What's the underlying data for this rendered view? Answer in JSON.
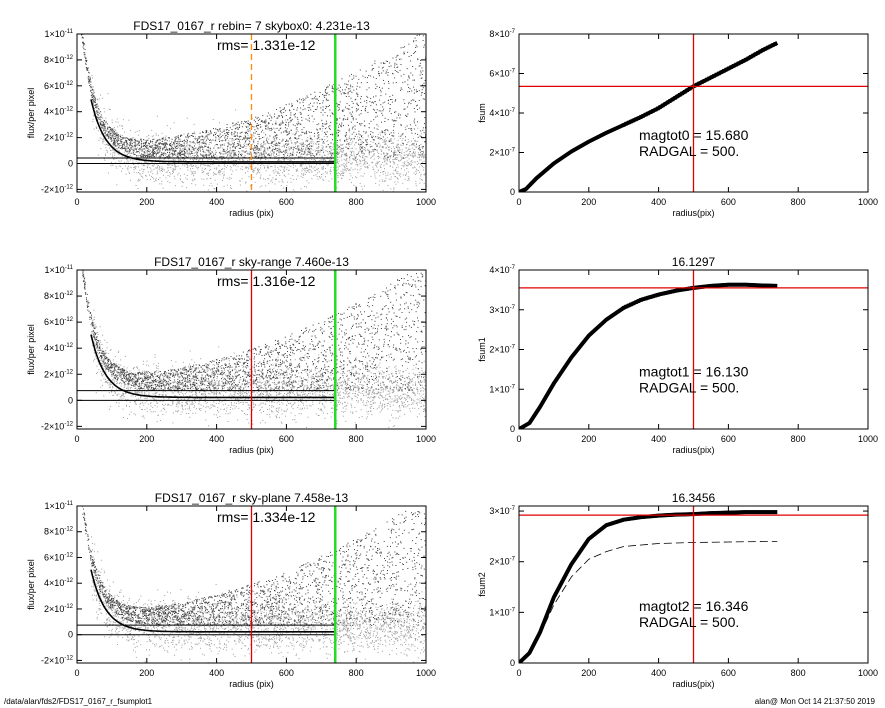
{
  "footer": {
    "left": "/data/alan/fds2/FDS17_0167_r_fsumplot1",
    "right": "alan@  Mon Oct 14 21:37:50 2019"
  },
  "colors": {
    "red": "#e00000",
    "green": "#22dd22",
    "orange": "#ff8c00",
    "gray": "#a0a0a0",
    "dark": "#404040"
  },
  "chart_data": [
    {
      "type": "scatter",
      "title": "FDS17_0167_r rebin= 7    skybox0:  4.231e-13",
      "annotation": "rms= 1.331e-12",
      "xlabel": "radius (pix)",
      "ylabel": "flux/per pixel",
      "xlim": [
        0,
        1000
      ],
      "ylim": [
        -2.2e-12,
        1e-11
      ],
      "xticks": [
        "0",
        "200",
        "400",
        "600",
        "800",
        "1000"
      ],
      "yticks": [
        {
          "v": -2e-12,
          "m": "-2",
          "e": "-12"
        },
        {
          "v": 0,
          "m": "0",
          "e": ""
        },
        {
          "v": 2e-12,
          "m": "2",
          "e": "-12"
        },
        {
          "v": 4e-12,
          "m": "4",
          "e": "-12"
        },
        {
          "v": 6e-12,
          "m": "6",
          "e": "-12"
        },
        {
          "v": 8e-12,
          "m": "8",
          "e": "-12"
        },
        {
          "v": 1e-11,
          "m": "1",
          "e": "-11"
        }
      ],
      "hlines": [
        0,
        4.231e-13
      ],
      "vline_radgal": 500,
      "vline_radgal_style": "dashed-orange",
      "vline_green": 740,
      "profile_model": {
        "amplitude": 1.25e-11,
        "scale_pix": 42,
        "r0_pix": 20
      },
      "sky_level": 4.231e-13
    },
    {
      "type": "line",
      "annotation_lines": [
        "magtot0 =  15.680",
        "RADGAL =    500."
      ],
      "xlabel": "radius(pix)",
      "ylabel": "fsum",
      "xlim": [
        0,
        1000
      ],
      "ylim": [
        0,
        8e-07
      ],
      "xticks": [
        "0",
        "200",
        "400",
        "600",
        "800",
        "1000"
      ],
      "yticks": [
        {
          "v": 0,
          "m": "0",
          "e": ""
        },
        {
          "v": 2e-07,
          "m": "2",
          "e": "-7"
        },
        {
          "v": 4e-07,
          "m": "4",
          "e": "-7"
        },
        {
          "v": 6e-07,
          "m": "6",
          "e": "-7"
        },
        {
          "v": 8e-07,
          "m": "8",
          "e": "-7"
        }
      ],
      "vline": 500,
      "hline": 5.35e-07,
      "curve_points": [
        [
          0,
          0
        ],
        [
          20,
          1.5e-08
        ],
        [
          50,
          7e-08
        ],
        [
          100,
          1.45e-07
        ],
        [
          150,
          2.05e-07
        ],
        [
          200,
          2.55e-07
        ],
        [
          250,
          3e-07
        ],
        [
          300,
          3.4e-07
        ],
        [
          350,
          3.8e-07
        ],
        [
          400,
          4.25e-07
        ],
        [
          450,
          4.8e-07
        ],
        [
          500,
          5.35e-07
        ],
        [
          550,
          5.8e-07
        ],
        [
          600,
          6.25e-07
        ],
        [
          650,
          6.7e-07
        ],
        [
          700,
          7.2e-07
        ],
        [
          740,
          7.55e-07
        ]
      ]
    },
    {
      "type": "scatter",
      "title": "FDS17_0167_r sky-range  7.460e-13",
      "annotation": "rms= 1.316e-12",
      "xlabel": "radius (pix)",
      "ylabel": "flux/per pixel",
      "xlim": [
        0,
        1000
      ],
      "ylim": [
        -2.2e-12,
        1e-11
      ],
      "xticks": [
        "0",
        "200",
        "400",
        "600",
        "800",
        "1000"
      ],
      "yticks": [
        {
          "v": -2e-12,
          "m": "-2",
          "e": "-12"
        },
        {
          "v": 0,
          "m": "0",
          "e": ""
        },
        {
          "v": 2e-12,
          "m": "2",
          "e": "-12"
        },
        {
          "v": 4e-12,
          "m": "4",
          "e": "-12"
        },
        {
          "v": 6e-12,
          "m": "6",
          "e": "-12"
        },
        {
          "v": 8e-12,
          "m": "8",
          "e": "-12"
        },
        {
          "v": 1e-11,
          "m": "1",
          "e": "-11"
        }
      ],
      "hlines": [
        0,
        7.46e-13
      ],
      "vline_radgal": 500,
      "vline_radgal_style": "solid-red",
      "vline_green": 740,
      "profile_model": {
        "amplitude": 1.25e-11,
        "scale_pix": 42,
        "r0_pix": 20
      },
      "sky_level": 7.46e-13
    },
    {
      "type": "line",
      "title": "16.1297",
      "annotation_lines": [
        "magtot1 =  16.130",
        "RADGAL =    500."
      ],
      "xlabel": "radius(pix)",
      "ylabel": "fsum1",
      "xlim": [
        0,
        1000
      ],
      "ylim": [
        0,
        4e-07
      ],
      "xticks": [
        "0",
        "200",
        "400",
        "600",
        "800",
        "1000"
      ],
      "yticks": [
        {
          "v": 0,
          "m": "0",
          "e": ""
        },
        {
          "v": 1e-07,
          "m": "1",
          "e": "-7"
        },
        {
          "v": 2e-07,
          "m": "2",
          "e": "-7"
        },
        {
          "v": 3e-07,
          "m": "3",
          "e": "-7"
        },
        {
          "v": 4e-07,
          "m": "4",
          "e": "-7"
        }
      ],
      "vline": 500,
      "hline": 3.55e-07,
      "curve_points": [
        [
          0,
          0
        ],
        [
          30,
          1.5e-08
        ],
        [
          60,
          5.5e-08
        ],
        [
          100,
          1.15e-07
        ],
        [
          150,
          1.8e-07
        ],
        [
          200,
          2.35e-07
        ],
        [
          250,
          2.75e-07
        ],
        [
          300,
          3.05e-07
        ],
        [
          350,
          3.25e-07
        ],
        [
          400,
          3.38e-07
        ],
        [
          450,
          3.48e-07
        ],
        [
          500,
          3.55e-07
        ],
        [
          550,
          3.6e-07
        ],
        [
          600,
          3.63e-07
        ],
        [
          650,
          3.63e-07
        ],
        [
          700,
          3.61e-07
        ],
        [
          740,
          3.6e-07
        ]
      ]
    },
    {
      "type": "scatter",
      "title": "FDS17_0167_r sky-plane  7.458e-13",
      "annotation": "rms= 1.334e-12",
      "xlabel": "radius (pix)",
      "ylabel": "flux/per pixel",
      "xlim": [
        0,
        1000
      ],
      "ylim": [
        -2.2e-12,
        1e-11
      ],
      "xticks": [
        "0",
        "200",
        "400",
        "600",
        "800",
        "1000"
      ],
      "yticks": [
        {
          "v": -2e-12,
          "m": "-2",
          "e": "-12"
        },
        {
          "v": 0,
          "m": "0",
          "e": ""
        },
        {
          "v": 2e-12,
          "m": "2",
          "e": "-12"
        },
        {
          "v": 4e-12,
          "m": "4",
          "e": "-12"
        },
        {
          "v": 6e-12,
          "m": "6",
          "e": "-12"
        },
        {
          "v": 8e-12,
          "m": "8",
          "e": "-12"
        },
        {
          "v": 1e-11,
          "m": "1",
          "e": "-11"
        }
      ],
      "hlines": [
        0,
        7.458e-13
      ],
      "vline_radgal": 500,
      "vline_radgal_style": "solid-red",
      "vline_green": 740,
      "profile_model": {
        "amplitude": 1.25e-11,
        "scale_pix": 42,
        "r0_pix": 20
      },
      "sky_level": 7.458e-13
    },
    {
      "type": "line",
      "title": "16.3456",
      "annotation_lines": [
        "magtot2 =  16.346",
        "RADGAL =    500."
      ],
      "xlabel": "radius(pix)",
      "ylabel": "fsum2",
      "xlim": [
        0,
        1000
      ],
      "ylim": [
        0,
        3.1e-07
      ],
      "xticks": [
        "0",
        "200",
        "400",
        "600",
        "800",
        "1000"
      ],
      "yticks": [
        {
          "v": 0,
          "m": "0",
          "e": ""
        },
        {
          "v": 1e-07,
          "m": "1",
          "e": "-7"
        },
        {
          "v": 2e-07,
          "m": "2",
          "e": "-7"
        },
        {
          "v": 3e-07,
          "m": "3",
          "e": "-7"
        }
      ],
      "vline": 500,
      "hline": 2.92e-07,
      "curve_points": [
        [
          0,
          0
        ],
        [
          30,
          2e-08
        ],
        [
          60,
          6e-08
        ],
        [
          100,
          1.3e-07
        ],
        [
          150,
          1.95e-07
        ],
        [
          200,
          2.45e-07
        ],
        [
          250,
          2.72e-07
        ],
        [
          300,
          2.83e-07
        ],
        [
          350,
          2.88e-07
        ],
        [
          400,
          2.91e-07
        ],
        [
          450,
          2.93e-07
        ],
        [
          500,
          2.94e-07
        ],
        [
          550,
          2.96e-07
        ],
        [
          600,
          2.97e-07
        ],
        [
          650,
          2.98e-07
        ],
        [
          700,
          2.98e-07
        ],
        [
          740,
          2.98e-07
        ]
      ],
      "dashed_points": [
        [
          0,
          0
        ],
        [
          30,
          1.8e-08
        ],
        [
          60,
          5.5e-08
        ],
        [
          100,
          1.15e-07
        ],
        [
          150,
          1.7e-07
        ],
        [
          200,
          2.05e-07
        ],
        [
          250,
          2.2e-07
        ],
        [
          300,
          2.3e-07
        ],
        [
          400,
          2.36e-07
        ],
        [
          500,
          2.38e-07
        ],
        [
          600,
          2.39e-07
        ],
        [
          700,
          2.4e-07
        ],
        [
          740,
          2.4e-07
        ]
      ]
    }
  ]
}
